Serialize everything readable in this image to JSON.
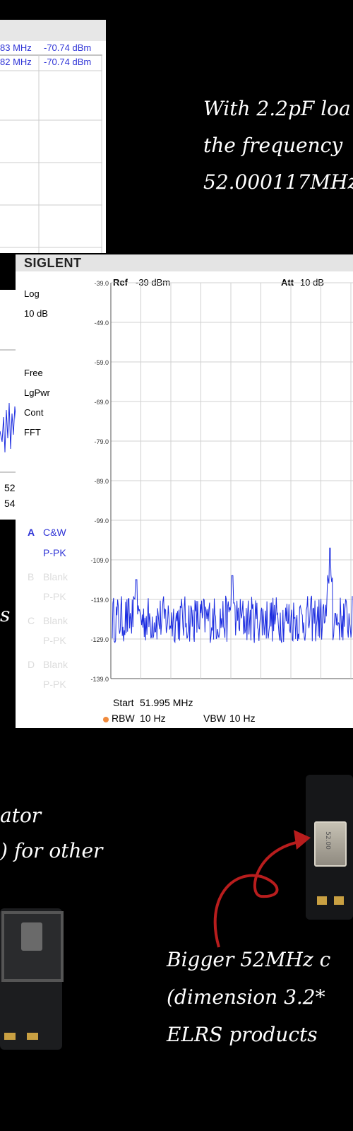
{
  "top_panel": {
    "marker_rows": [
      {
        "freq": "83 MHz",
        "amp": "-70.74 dBm"
      },
      {
        "freq": "82 MHz",
        "amp": "-70.74 dBm"
      }
    ]
  },
  "left_panel": {
    "freq_labels": [
      "52",
      "54"
    ]
  },
  "captions": {
    "top_right_lines": [
      "With 2.2pF loa",
      "the frequency",
      "52.000117MHz,"
    ],
    "left_fragment": "s",
    "bottom_left_lines": [
      "ator",
      ") for other"
    ],
    "bottom_right_lines": [
      "Bigger 52MHz c",
      "(dimension 3.2*",
      "ELRS products"
    ]
  },
  "analyzer": {
    "brand": "SIGLENT",
    "ref_label": "Ref",
    "ref_value": "-39 dBm",
    "att_label": "Att",
    "att_value": "10 dB",
    "side_labels": [
      "Log",
      "10 dB",
      "Free",
      "LgPwr",
      "Cont",
      "FFT"
    ],
    "traces": [
      {
        "letter": "A",
        "name": "C&W",
        "det": "P-PK",
        "active": true
      },
      {
        "letter": "B",
        "name": "Blank",
        "det": "P-PK",
        "active": false
      },
      {
        "letter": "C",
        "name": "Blank",
        "det": "P-PK",
        "active": false
      },
      {
        "letter": "D",
        "name": "Blank",
        "det": "P-PK",
        "active": false
      }
    ],
    "start_label": "Start",
    "start_value": "51.995 MHz",
    "rbw_label": "RBW",
    "rbw_value": "10 Hz",
    "vbw_label": "VBW",
    "vbw_value": "10 Hz",
    "trace_color": "#1c2de0",
    "label_blue": "#2e33d6"
  },
  "component_label": "52.00",
  "chart_data": {
    "type": "line",
    "ylim": [
      -139,
      -39
    ],
    "y_ticks": [
      "-39.0",
      "-49.0",
      "-59.0",
      "-69.0",
      "-79.0",
      "-89.0",
      "-99.0",
      "-109.0",
      "-119.0",
      "-129.0",
      "-139.0"
    ],
    "x_start": "51.995 MHz",
    "noise_floor_dbm": -124,
    "peaks": [
      {
        "x_frac": 0.1,
        "y": -114
      },
      {
        "x_frac": 0.5,
        "y": -113
      },
      {
        "x_frac": 0.907,
        "y": -106
      }
    ]
  }
}
